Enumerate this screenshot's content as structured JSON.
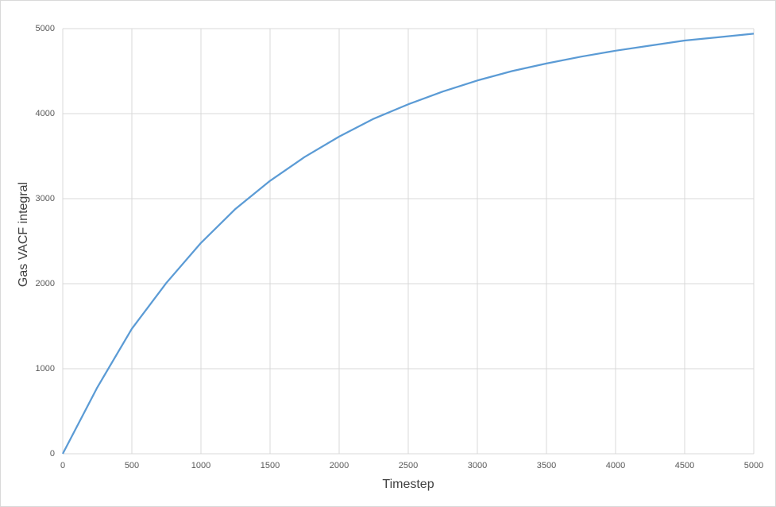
{
  "chart_data": {
    "type": "line",
    "x_label": "Timestep",
    "y_label": "Gas VACF integral",
    "x": [
      0,
      250,
      500,
      750,
      1000,
      1250,
      1500,
      1750,
      2000,
      2250,
      2500,
      2750,
      3000,
      3250,
      3500,
      3750,
      4000,
      4250,
      4500,
      4750,
      5000
    ],
    "series": [
      {
        "color": "#5b9bd5",
        "values": [
          0,
          780,
          1470,
          2010,
          2480,
          2880,
          3210,
          3490,
          3730,
          3940,
          4110,
          4260,
          4390,
          4500,
          4590,
          4670,
          4740,
          4800,
          4860,
          4900,
          4940
        ]
      }
    ],
    "xlim": [
      0,
      5000
    ],
    "xticks": [
      0,
      500,
      1000,
      1500,
      2000,
      2500,
      3000,
      3500,
      4000,
      4500,
      5000
    ],
    "ylim": [
      0,
      5000
    ],
    "yticks": [
      0,
      1000,
      2000,
      3000,
      4000,
      5000
    ],
    "grid": true
  }
}
